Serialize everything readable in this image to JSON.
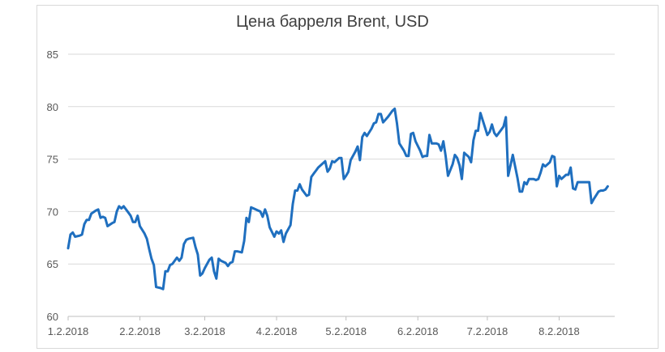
{
  "chart_data": {
    "type": "line",
    "title": "Цена барреля Brent, USD",
    "xlabel": "",
    "ylabel": "",
    "ylim": [
      60,
      85
    ],
    "yticks": [
      "60",
      "65",
      "70",
      "75",
      "80",
      "85"
    ],
    "xtick_labels": [
      "1.2.2018",
      "2.2.2018",
      "3.2.2018",
      "4.2.2018",
      "5.2.2018",
      "6.2.2018",
      "7.2.2018",
      "8.2.2018"
    ],
    "grid": "horizontal",
    "legend": "none",
    "series": [
      {
        "color": "#1f6fbf",
        "points": [
          [
            0,
            66.5
          ],
          [
            1,
            67.8
          ],
          [
            2,
            68.0
          ],
          [
            3,
            67.6
          ],
          [
            5,
            67.7
          ],
          [
            6,
            67.8
          ],
          [
            7,
            68.8
          ],
          [
            8,
            69.2
          ],
          [
            9,
            69.2
          ],
          [
            10,
            69.8
          ],
          [
            12,
            70.1
          ],
          [
            13,
            70.2
          ],
          [
            14,
            69.4
          ],
          [
            15,
            69.5
          ],
          [
            16,
            69.4
          ],
          [
            17,
            68.6
          ],
          [
            19,
            68.9
          ],
          [
            20,
            69.0
          ],
          [
            21,
            70.0
          ],
          [
            22,
            70.5
          ],
          [
            23,
            70.3
          ],
          [
            24,
            70.5
          ],
          [
            26,
            69.9
          ],
          [
            27,
            69.6
          ],
          [
            28,
            69.0
          ],
          [
            29,
            69.0
          ],
          [
            30,
            69.6
          ],
          [
            31,
            68.6
          ],
          [
            33,
            67.9
          ],
          [
            34,
            67.4
          ],
          [
            35,
            66.4
          ],
          [
            36,
            65.5
          ],
          [
            37,
            64.9
          ],
          [
            38,
            62.8
          ],
          [
            40,
            62.7
          ],
          [
            41,
            62.6
          ],
          [
            42,
            64.3
          ],
          [
            43,
            64.3
          ],
          [
            44,
            64.9
          ],
          [
            45,
            65.0
          ],
          [
            47,
            65.6
          ],
          [
            48,
            65.3
          ],
          [
            49,
            65.6
          ],
          [
            50,
            66.9
          ],
          [
            51,
            67.3
          ],
          [
            52,
            67.4
          ],
          [
            54,
            67.5
          ],
          [
            55,
            66.6
          ],
          [
            56,
            65.9
          ],
          [
            57,
            63.9
          ],
          [
            58,
            64.1
          ],
          [
            59,
            64.6
          ],
          [
            61,
            65.4
          ],
          [
            62,
            65.6
          ],
          [
            63,
            64.3
          ],
          [
            64,
            63.6
          ],
          [
            65,
            65.5
          ],
          [
            66,
            65.3
          ],
          [
            68,
            65.1
          ],
          [
            69,
            64.8
          ],
          [
            70,
            65.1
          ],
          [
            71,
            65.2
          ],
          [
            72,
            66.2
          ],
          [
            73,
            66.2
          ],
          [
            75,
            66.1
          ],
          [
            76,
            67.2
          ],
          [
            77,
            69.4
          ],
          [
            78,
            69.0
          ],
          [
            79,
            70.4
          ],
          [
            80,
            70.3
          ],
          [
            82,
            70.1
          ],
          [
            83,
            70.0
          ],
          [
            84,
            69.5
          ],
          [
            85,
            70.2
          ],
          [
            86,
            69.6
          ],
          [
            87,
            68.5
          ],
          [
            89,
            67.6
          ],
          [
            90,
            68.1
          ],
          [
            91,
            67.9
          ],
          [
            92,
            68.2
          ],
          [
            93,
            67.1
          ],
          [
            94,
            67.9
          ],
          [
            96,
            68.7
          ],
          [
            97,
            70.7
          ],
          [
            98,
            72.0
          ],
          [
            99,
            72.0
          ],
          [
            100,
            72.6
          ],
          [
            101,
            72.1
          ],
          [
            103,
            71.5
          ],
          [
            104,
            71.6
          ],
          [
            105,
            73.3
          ],
          [
            106,
            73.6
          ],
          [
            107,
            73.9
          ],
          [
            108,
            74.2
          ],
          [
            110,
            74.6
          ],
          [
            111,
            74.8
          ],
          [
            112,
            73.8
          ],
          [
            113,
            74.1
          ],
          [
            114,
            74.8
          ],
          [
            115,
            74.7
          ],
          [
            117,
            75.1
          ],
          [
            118,
            75.1
          ],
          [
            119,
            73.1
          ],
          [
            120,
            73.4
          ],
          [
            121,
            73.8
          ],
          [
            122,
            74.9
          ],
          [
            124,
            75.7
          ],
          [
            125,
            76.2
          ],
          [
            126,
            74.9
          ],
          [
            127,
            77.1
          ],
          [
            128,
            77.5
          ],
          [
            129,
            77.2
          ],
          [
            131,
            77.9
          ],
          [
            132,
            78.4
          ],
          [
            133,
            78.5
          ],
          [
            134,
            79.3
          ],
          [
            135,
            79.3
          ],
          [
            136,
            78.5
          ],
          [
            138,
            79.0
          ],
          [
            139,
            79.3
          ],
          [
            140,
            79.6
          ],
          [
            141,
            79.8
          ],
          [
            142,
            78.4
          ],
          [
            143,
            76.5
          ],
          [
            145,
            75.8
          ],
          [
            146,
            75.3
          ],
          [
            147,
            75.3
          ],
          [
            148,
            77.4
          ],
          [
            149,
            77.5
          ],
          [
            150,
            76.7
          ],
          [
            152,
            75.8
          ],
          [
            153,
            75.2
          ],
          [
            154,
            75.3
          ],
          [
            155,
            75.3
          ],
          [
            156,
            77.3
          ],
          [
            157,
            76.5
          ],
          [
            159,
            76.5
          ],
          [
            160,
            76.4
          ],
          [
            161,
            75.8
          ],
          [
            162,
            76.7
          ],
          [
            163,
            75.3
          ],
          [
            164,
            73.4
          ],
          [
            166,
            74.5
          ],
          [
            167,
            75.4
          ],
          [
            168,
            75.1
          ],
          [
            169,
            74.4
          ],
          [
            170,
            73.1
          ],
          [
            171,
            75.6
          ],
          [
            173,
            75.2
          ],
          [
            174,
            74.7
          ],
          [
            175,
            76.8
          ],
          [
            176,
            77.7
          ],
          [
            177,
            77.7
          ],
          [
            178,
            79.4
          ],
          [
            180,
            78.0
          ],
          [
            181,
            77.3
          ],
          [
            182,
            77.6
          ],
          [
            183,
            78.3
          ],
          [
            184,
            77.5
          ],
          [
            185,
            77.2
          ],
          [
            187,
            77.8
          ],
          [
            188,
            78.1
          ],
          [
            189,
            79.0
          ],
          [
            190,
            73.4
          ],
          [
            191,
            74.4
          ],
          [
            192,
            75.4
          ],
          [
            194,
            73.2
          ],
          [
            195,
            71.9
          ],
          [
            196,
            71.9
          ],
          [
            197,
            72.8
          ],
          [
            198,
            72.6
          ],
          [
            199,
            73.1
          ],
          [
            201,
            73.1
          ],
          [
            202,
            73.0
          ],
          [
            203,
            73.1
          ],
          [
            204,
            73.7
          ],
          [
            205,
            74.5
          ],
          [
            206,
            74.3
          ],
          [
            208,
            74.7
          ],
          [
            209,
            75.3
          ],
          [
            210,
            75.2
          ],
          [
            211,
            72.4
          ],
          [
            212,
            73.4
          ],
          [
            213,
            73.1
          ],
          [
            215,
            73.5
          ],
          [
            216,
            73.5
          ],
          [
            217,
            74.2
          ],
          [
            218,
            72.2
          ],
          [
            219,
            72.1
          ],
          [
            220,
            72.8
          ],
          [
            222,
            72.8
          ],
          [
            223,
            72.8
          ],
          [
            224,
            72.8
          ],
          [
            225,
            72.8
          ],
          [
            226,
            70.8
          ],
          [
            227,
            71.2
          ],
          [
            229,
            71.9
          ],
          [
            230,
            72.0
          ],
          [
            231,
            72.0
          ],
          [
            232,
            72.1
          ],
          [
            233,
            72.4
          ]
        ]
      }
    ]
  }
}
